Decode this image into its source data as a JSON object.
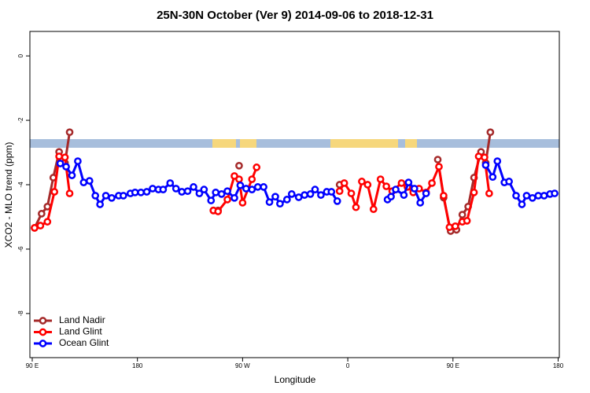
{
  "chart_data": {
    "type": "line",
    "title": "25N-30N October (Ver 9)   2014-09-06 to 2018-12-31",
    "x_label": "Longitude",
    "y_label": "XCO2 - MLO trend (ppm)",
    "xlim": [
      88,
      541
    ],
    "xticks": [
      {
        "value": 90,
        "label": "90 E"
      },
      {
        "value": 180,
        "label": "180"
      },
      {
        "value": 270,
        "label": "90 W"
      },
      {
        "value": 360,
        "label": "0"
      },
      {
        "value": 450,
        "label": "90 E"
      },
      {
        "value": 540,
        "label": "180"
      }
    ],
    "ylim": [
      -9.37,
      0.76
    ],
    "yticks": [
      0,
      -2,
      -4,
      -6,
      -8
    ],
    "legend": "bottomleft",
    "series": [
      {
        "name": "Land Nadir",
        "color": "#a52a2a",
        "x": [
          92,
          98,
          103,
          108,
          113,
          118,
          122,
          null,
          245,
          249,
          null,
          267,
          null,
          353,
          null,
          437,
          442,
          448,
          453,
          458,
          463,
          468,
          474,
          478,
          482
        ],
        "values": [
          -5.34,
          -4.9,
          -4.68,
          -3.78,
          -2.98,
          -3.32,
          -2.37,
          null,
          -4.8,
          -4.8,
          null,
          -3.41,
          null,
          -4.0,
          null,
          -3.22,
          -4.4,
          -5.44,
          -5.4,
          -4.93,
          -4.68,
          -3.78,
          -2.98,
          -3.32,
          -2.37
        ]
      },
      {
        "name": "Land Glint",
        "color": "#ff0000",
        "x": [
          92,
          97,
          103,
          109,
          113,
          118,
          122,
          null,
          245,
          249,
          257,
          263,
          267,
          270,
          278,
          282,
          null,
          353,
          357,
          363,
          367,
          372,
          377,
          382,
          388,
          393,
          398,
          406,
          411,
          416,
          421,
          427,
          432,
          438,
          442,
          447,
          452,
          458,
          462,
          468,
          472,
          477,
          481
        ],
        "values": [
          -5.34,
          -5.27,
          -5.15,
          -4.22,
          -3.12,
          -3.15,
          -4.27,
          null,
          -4.8,
          -4.83,
          -4.46,
          -3.73,
          -3.83,
          -4.56,
          -3.83,
          -3.46,
          null,
          -4.2,
          -3.95,
          -4.27,
          -4.7,
          -3.9,
          -4.0,
          -4.76,
          -3.83,
          -4.05,
          -4.2,
          -3.95,
          -4.07,
          -4.24,
          -4.12,
          -4.24,
          -3.95,
          -3.44,
          -4.34,
          -5.32,
          -5.29,
          -5.15,
          -5.12,
          -4.24,
          -3.12,
          -3.15,
          -4.27
        ]
      },
      {
        "name": "Ocean Glint",
        "color": "#0000ff",
        "x": [
          114,
          119,
          124,
          129,
          134,
          139,
          144,
          148,
          153,
          158,
          164,
          168,
          174,
          178,
          183,
          188,
          193,
          198,
          202,
          208,
          213,
          218,
          223,
          228,
          233,
          237,
          243,
          247,
          252,
          257,
          263,
          268,
          273,
          278,
          283,
          288,
          293,
          298,
          302,
          308,
          312,
          318,
          323,
          328,
          332,
          337,
          342,
          346,
          351,
          null,
          394,
          397,
          401,
          408,
          412,
          417,
          422,
          427,
          null,
          478,
          484,
          488,
          494,
          498,
          504,
          509,
          513,
          518,
          523,
          528,
          533,
          537
        ],
        "values": [
          -3.34,
          -3.44,
          -3.71,
          -3.27,
          -3.93,
          -3.88,
          -4.34,
          -4.61,
          -4.34,
          -4.41,
          -4.34,
          -4.34,
          -4.27,
          -4.24,
          -4.24,
          -4.22,
          -4.12,
          -4.15,
          -4.15,
          -3.95,
          -4.12,
          -4.22,
          -4.2,
          -4.07,
          -4.27,
          -4.15,
          -4.49,
          -4.24,
          -4.29,
          -4.2,
          -4.41,
          -4.02,
          -4.12,
          -4.15,
          -4.07,
          -4.07,
          -4.54,
          -4.37,
          -4.59,
          -4.46,
          -4.29,
          -4.39,
          -4.32,
          -4.29,
          -4.15,
          -4.32,
          -4.22,
          -4.22,
          -4.51,
          null,
          -4.46,
          -4.37,
          -4.15,
          -4.32,
          -3.93,
          -4.12,
          -4.56,
          -4.27,
          null,
          -3.39,
          -3.76,
          -3.27,
          -3.93,
          -3.9,
          -4.34,
          -4.61,
          -4.34,
          -4.41,
          -4.34,
          -4.34,
          -4.29,
          -4.27
        ]
      }
    ]
  }
}
